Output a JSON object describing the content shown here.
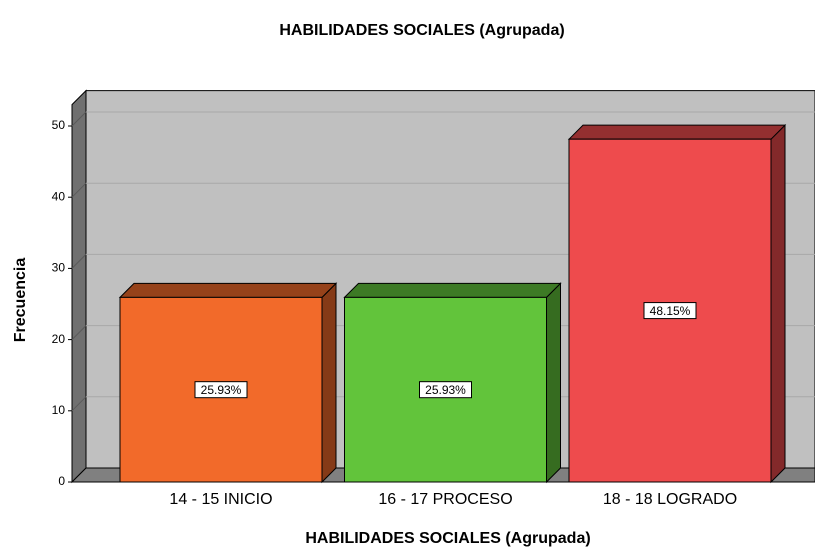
{
  "chart_data": {
    "type": "bar3d",
    "title": "HABILIDADES SOCIALES (Agrupada)",
    "x_label": "HABILIDADES SOCIALES (Agrupada)",
    "y_label": "Frecuencia",
    "categories": [
      "14 - 15 INICIO",
      "16 - 17 PROCESO",
      "18 - 18 LOGRADO"
    ],
    "values": [
      25.93,
      25.93,
      48.15
    ],
    "value_labels": [
      "25.93%",
      "25.93%",
      "48.15%"
    ],
    "colors": [
      "#f26a2a",
      "#62c43b",
      "#ee4b4d"
    ],
    "ylim": [
      0,
      53
    ],
    "yticks": [
      0,
      10,
      20,
      30,
      40,
      50
    ],
    "grid": true
  }
}
